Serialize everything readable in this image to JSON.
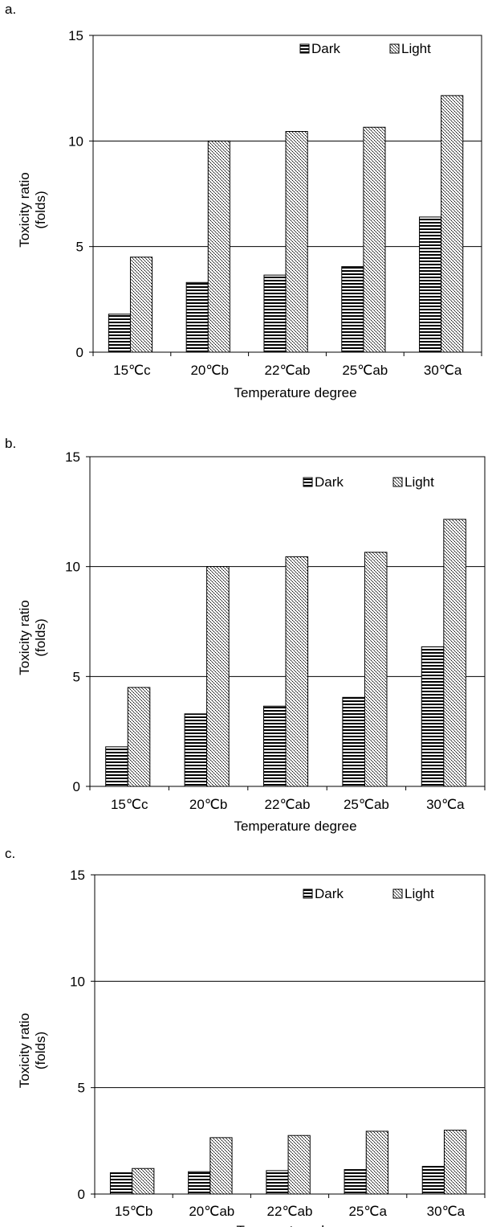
{
  "chart_data": [
    {
      "panel_label": "a.",
      "type": "bar",
      "categories": [
        "15℃c",
        "20℃b",
        "22℃ab",
        "25℃ab",
        "30℃a"
      ],
      "series": [
        {
          "name": "Dark",
          "values": [
            1.8,
            3.3,
            3.65,
            4.05,
            6.4
          ]
        },
        {
          "name": "Light",
          "values": [
            4.5,
            10.0,
            10.45,
            10.65,
            12.15
          ]
        }
      ],
      "xlabel": "Temperature degree",
      "ylabel": "Toxicity ratio (folds)",
      "ylim": [
        0,
        15
      ],
      "yticks": [
        0,
        5,
        10,
        15
      ],
      "grid": true,
      "legend": "top-right"
    },
    {
      "panel_label": "b.",
      "type": "bar",
      "categories": [
        "15℃c",
        "20℃b",
        "22℃ab",
        "25℃ab",
        "30℃a"
      ],
      "series": [
        {
          "name": "Dark",
          "values": [
            1.8,
            3.3,
            3.65,
            4.05,
            6.35
          ]
        },
        {
          "name": "Light",
          "values": [
            4.5,
            10.0,
            10.45,
            10.65,
            12.15
          ]
        }
      ],
      "xlabel": "Temperature degree",
      "ylabel": "Toxicity ratio (folds)",
      "ylim": [
        0,
        15
      ],
      "yticks": [
        0,
        5,
        10,
        15
      ],
      "grid": true,
      "legend": "top-right"
    },
    {
      "panel_label": "c.",
      "type": "bar",
      "categories": [
        "15℃b",
        "20℃ab",
        "22℃ab",
        "25℃a",
        "30℃a"
      ],
      "series": [
        {
          "name": "Dark",
          "values": [
            1.0,
            1.05,
            1.1,
            1.15,
            1.3
          ]
        },
        {
          "name": "Light",
          "values": [
            1.2,
            2.65,
            2.75,
            2.95,
            3.0
          ]
        }
      ],
      "xlabel": "Temperature degree",
      "ylabel": "Toxicity ratio (folds)",
      "ylim": [
        0,
        15
      ],
      "yticks": [
        0,
        5,
        10,
        15
      ],
      "grid": true,
      "legend": "top-right"
    }
  ]
}
